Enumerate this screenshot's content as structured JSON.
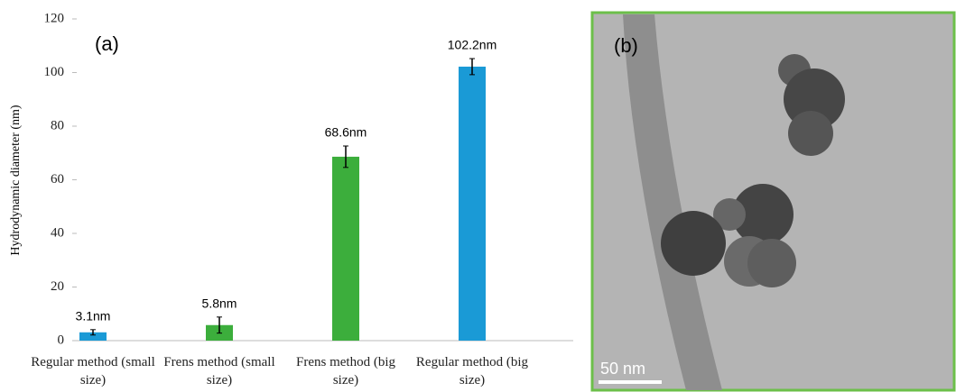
{
  "chart_data": {
    "type": "bar",
    "y_label": "Hydrodynamic diameter (nm)",
    "annotation": "(a)",
    "categories": [
      "Regular method (small size)",
      "Frens method (small size)",
      "Frens method (big size)",
      "Regular method (big size)"
    ],
    "values": [
      3.1,
      5.8,
      68.6,
      102.2
    ],
    "value_labels": [
      "3.1nm",
      "5.8nm",
      "68.6nm",
      "102.2nm"
    ],
    "errors": [
      1,
      3,
      4,
      3
    ],
    "colors": [
      "#1a9ad6",
      "#3cae3c",
      "#3cae3c",
      "#1a9ad6"
    ],
    "ylim": [
      0,
      120
    ],
    "yticks": [
      0,
      20,
      40,
      60,
      80,
      100,
      120
    ],
    "grid": false
  },
  "image": {
    "label": "(b)",
    "scale_bar": "50 nm"
  }
}
